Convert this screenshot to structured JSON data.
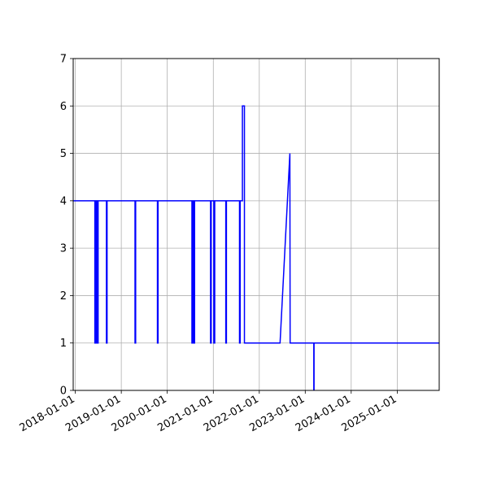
{
  "chart_data": {
    "type": "line",
    "title": "",
    "xlabel": "",
    "ylabel": "",
    "grid": true,
    "xlim": [
      "2017-12-15",
      "2025-11-30"
    ],
    "ylim": [
      0,
      7
    ],
    "xticks": [
      "2018-01-01",
      "2019-01-01",
      "2020-01-01",
      "2021-01-01",
      "2022-01-01",
      "2023-01-01",
      "2024-01-01",
      "2025-01-01"
    ],
    "yticks": [
      0,
      1,
      2,
      3,
      4,
      5,
      6,
      7
    ],
    "series": [
      {
        "color": "#0000ff",
        "x": [
          "2017-12-15",
          "2018-06-05",
          "2018-06-05",
          "2018-06-10",
          "2018-06-10",
          "2018-06-15",
          "2018-06-15",
          "2018-06-20",
          "2018-06-20",
          "2018-06-25",
          "2018-06-25",
          "2018-07-01",
          "2018-07-01",
          "2018-09-05",
          "2018-09-05",
          "2018-09-10",
          "2018-09-10",
          "2019-04-20",
          "2019-04-20",
          "2019-04-25",
          "2019-04-25",
          "2019-10-15",
          "2019-10-15",
          "2019-10-20",
          "2019-10-20",
          "2020-07-15",
          "2020-07-15",
          "2020-07-20",
          "2020-07-20",
          "2020-07-28",
          "2020-07-28",
          "2020-08-05",
          "2020-08-05",
          "2020-12-10",
          "2020-12-10",
          "2020-12-15",
          "2020-12-15",
          "2021-01-05",
          "2021-01-05",
          "2021-01-12",
          "2021-01-12",
          "2021-04-10",
          "2021-04-10",
          "2021-04-15",
          "2021-04-15",
          "2021-07-28",
          "2021-07-28",
          "2021-08-02",
          "2021-08-02",
          "2021-08-20",
          "2021-08-20",
          "2021-08-22",
          "2021-08-22",
          "2021-09-05",
          "2021-09-05",
          "2021-09-10",
          "2021-09-10",
          "2022-06-15",
          "2022-09-01",
          "2022-09-03",
          "2023-03-10",
          "2023-03-10",
          "2023-03-12",
          "2023-03-12",
          "2025-11-30"
        ],
        "y": [
          4,
          4,
          1,
          1,
          4,
          4,
          1,
          1,
          4,
          4,
          1,
          1,
          4,
          4,
          1,
          1,
          4,
          4,
          1,
          1,
          4,
          4,
          1,
          1,
          4,
          4,
          1,
          1,
          4,
          4,
          1,
          1,
          4,
          4,
          1,
          1,
          4,
          4,
          1,
          1,
          4,
          4,
          1,
          1,
          4,
          4,
          1,
          1,
          4,
          4,
          6,
          6,
          6,
          6,
          1,
          1,
          1,
          1,
          5,
          1,
          1,
          0,
          0,
          1,
          1
        ]
      }
    ]
  }
}
